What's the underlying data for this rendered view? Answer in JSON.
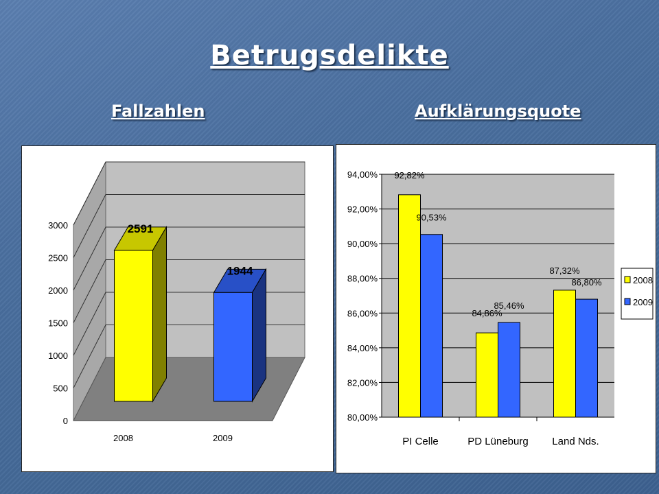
{
  "slide": {
    "title": "Betrugsdelikte",
    "left_heading": "Fallzahlen",
    "right_heading": "Aufklärungsquote"
  },
  "chart_data": [
    {
      "type": "bar",
      "style": "3d",
      "categories": [
        "2008",
        "2009"
      ],
      "values": [
        2591,
        1944
      ],
      "value_labels": [
        "2591",
        "1944"
      ],
      "bar_colors": [
        "#ffff00",
        "#3366ff"
      ],
      "ylim": [
        0,
        3000
      ],
      "yticks": [
        "0",
        "500",
        "1000",
        "1500",
        "2000",
        "2500",
        "3000"
      ],
      "grid": true
    },
    {
      "type": "bar",
      "categories": [
        "PI Celle",
        "PD Lüneburg",
        "Land Nds."
      ],
      "series": [
        {
          "name": "2008",
          "color": "#ffff00",
          "values": [
            92.82,
            84.86,
            87.32
          ],
          "labels": [
            "92,82%",
            "84,86%",
            "87,32%"
          ]
        },
        {
          "name": "2009",
          "color": "#3366ff",
          "values": [
            90.53,
            85.46,
            86.8
          ],
          "labels": [
            "90,53%",
            "85,46%",
            "86,80%"
          ]
        }
      ],
      "ylim": [
        80,
        94
      ],
      "yticks": [
        "80,00%",
        "82,00%",
        "84,00%",
        "86,00%",
        "88,00%",
        "90,00%",
        "92,00%",
        "94,00%"
      ],
      "grid": true,
      "legend": "right"
    }
  ]
}
